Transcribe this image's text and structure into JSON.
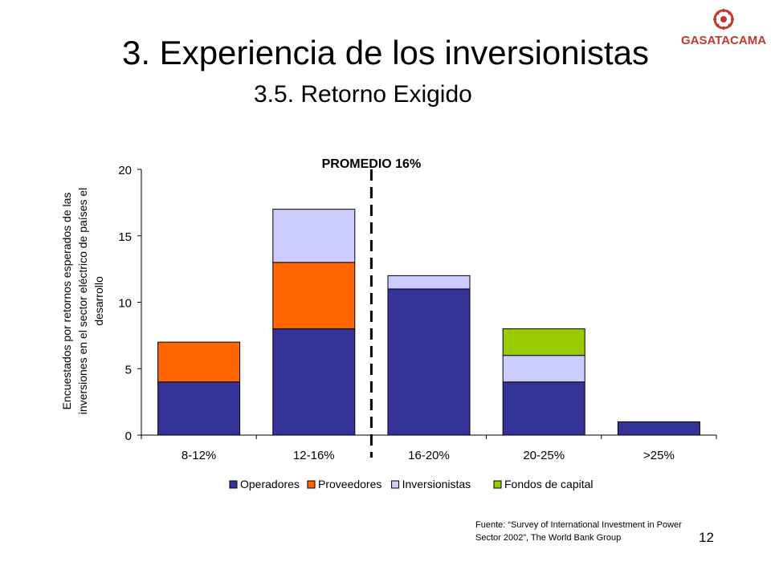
{
  "slide": {
    "title": "3. Experiencia de los inversionistas",
    "subtitle": "3.5. Retorno Exigido",
    "logo_text": "GASATACAMA",
    "source_line1": "Fuente: “Survey of International Investment in Power",
    "source_line2": "Sector 2002”,  The World Bank Group",
    "page_number": "12"
  },
  "chart_data": {
    "type": "bar",
    "stacked": true,
    "categories": [
      "8-12%",
      "12-16%",
      "16-20%",
      "20-25%",
      ">25%"
    ],
    "series": [
      {
        "name": "Operadores",
        "values": [
          4,
          8,
          11,
          4,
          1
        ],
        "color": "#333399"
      },
      {
        "name": "Proveedores",
        "values": [
          3,
          5,
          0,
          0,
          0
        ],
        "color": "#ff6600"
      },
      {
        "name": "Inversionistas",
        "values": [
          0,
          4,
          1,
          2,
          0
        ],
        "color": "#ccccff"
      },
      {
        "name": "Fondos de capital",
        "values": [
          0,
          0,
          0,
          2,
          0
        ],
        "color": "#99cc00"
      }
    ],
    "ylabel_lines": [
      "Encuestados por retornos esperados de las",
      "inversiones en el sector eléctrico de países el",
      "desarrollo"
    ],
    "ylim": [
      0,
      20
    ],
    "yticks": [
      0,
      5,
      10,
      15,
      20
    ],
    "annotation": {
      "text": "PROMEDIO 16%",
      "x_value": "between 12-16% and 16-20%",
      "style": "dashed"
    },
    "legend_position": "bottom",
    "grid": false
  }
}
